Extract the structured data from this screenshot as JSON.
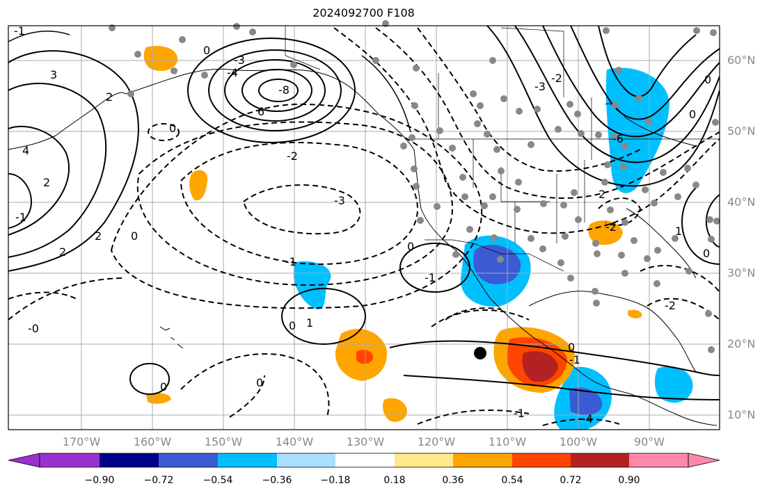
{
  "title": "2024092700 F108",
  "longitude_labels": [
    "170°W",
    "160°W",
    "150°W",
    "140°W",
    "130°W",
    "120°W",
    "110°W",
    "100°W",
    "90°W"
  ],
  "latitude_labels": [
    "60°N",
    "50°N",
    "40°N",
    "30°N",
    "20°N",
    "10°N"
  ],
  "contour_labels": [
    "-1",
    "0",
    "3",
    "2",
    "4",
    "2",
    "-1",
    "2",
    "2",
    "0",
    "-8",
    "6",
    "-4",
    "-3",
    "0",
    "-2",
    "-3",
    "-1",
    "0",
    "-1",
    "0",
    "1",
    "0",
    "-0",
    "0",
    "-1",
    "0",
    "-1",
    "-4",
    "-3",
    "-2",
    "-6",
    "2",
    "-2",
    "0",
    "0",
    "0",
    "-2",
    "1"
  ],
  "colorbar": {
    "tick_labels": [
      "−0.90",
      "−0.72",
      "−0.54",
      "−0.36",
      "−0.18",
      "0.18",
      "0.36",
      "0.54",
      "0.72",
      "0.90"
    ],
    "colors": [
      "#9932cc",
      "#00008b",
      "#3a5bd3",
      "#00bfff",
      "#aadfff",
      "#ffffff",
      "#ffe98a",
      "#ffa500",
      "#ff4500",
      "#b22222",
      "#ff88aa"
    ]
  },
  "colors": {
    "frame": "#000000",
    "grid": "#aaaaaa",
    "station_dot": "#888888",
    "marker": "#000000"
  }
}
